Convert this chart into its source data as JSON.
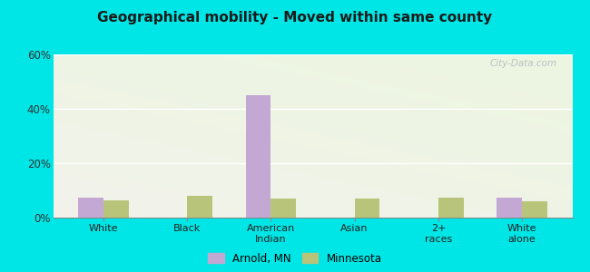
{
  "title": "Geographical mobility - Moved within same county",
  "categories": [
    "White",
    "Black",
    "American\nIndian",
    "Asian",
    "2+\nraces",
    "White\nalone"
  ],
  "arnold_values": [
    7.5,
    0,
    45,
    0,
    0,
    7.5
  ],
  "minnesota_values": [
    6.5,
    8.0,
    7.0,
    7.0,
    7.5,
    6.0
  ],
  "arnold_color": "#c4a8d4",
  "minnesota_color": "#b8c47a",
  "ylim": [
    0,
    60
  ],
  "yticks": [
    0,
    20,
    40,
    60
  ],
  "ytick_labels": [
    "0%",
    "20%",
    "40%",
    "60%"
  ],
  "outer_bg": "#00e5e5",
  "bar_width": 0.3,
  "legend_arnold": "Arnold, MN",
  "legend_minnesota": "Minnesota",
  "watermark": "City-Data.com",
  "grid_color": "#ffffff",
  "bg_color_left": "#e8f5e0",
  "bg_color_right": "#d0ead0"
}
